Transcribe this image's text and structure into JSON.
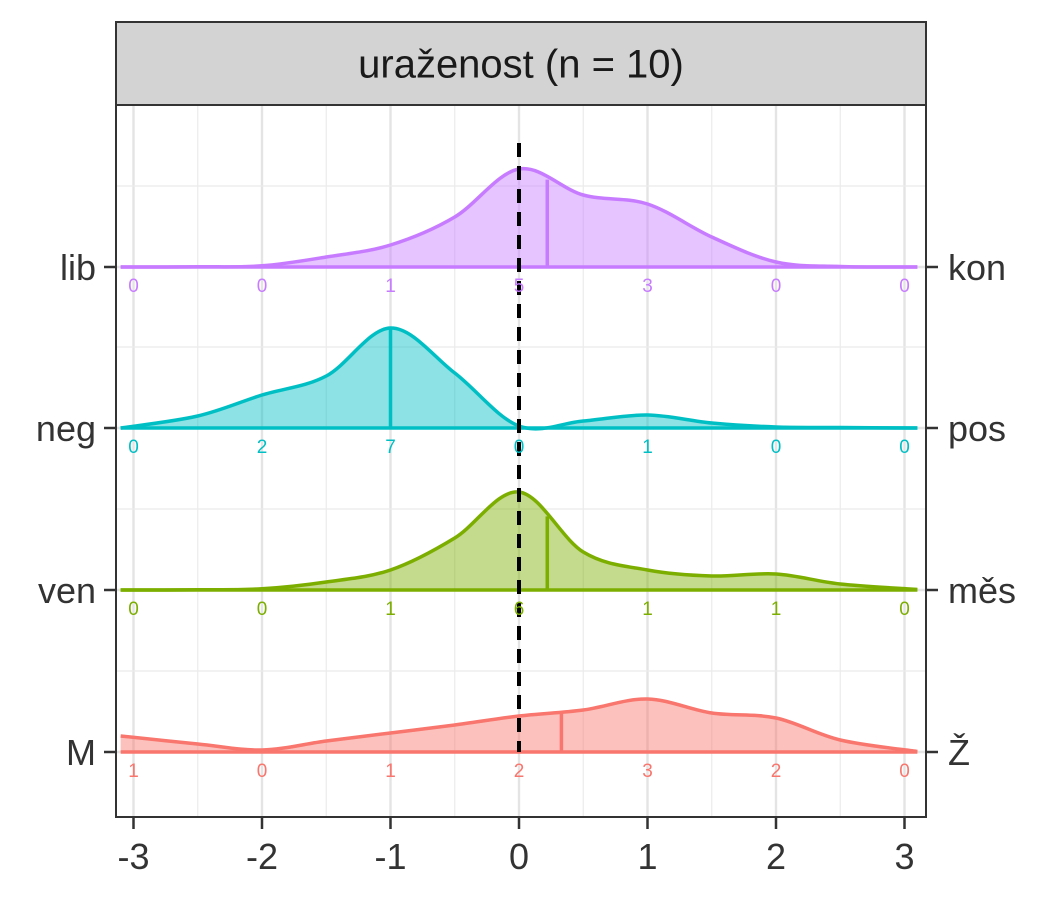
{
  "chart_data": {
    "type": "ridgeline",
    "title": "uraženost (n = 10)",
    "xlim": [
      -3,
      3
    ],
    "x_ticks": [
      -3,
      -2,
      -1,
      0,
      1,
      2,
      3
    ],
    "x_tick_labels": [
      "-3",
      "-2",
      "-1",
      "0",
      "1",
      "2",
      "3"
    ],
    "reference_line_x": 0,
    "grid": true,
    "series": [
      {
        "left_label": "lib",
        "right_label": "kon",
        "color": "#C77CFF",
        "mean": 0.22,
        "counts": [
          0,
          0,
          1,
          5,
          3,
          0,
          0
        ],
        "density": [
          [
            -3.1,
            0
          ],
          [
            -2.5,
            0.002
          ],
          [
            -2,
            0.012
          ],
          [
            -1.5,
            0.1
          ],
          [
            -1,
            0.22
          ],
          [
            -0.5,
            0.5
          ],
          [
            0,
            0.98
          ],
          [
            0.5,
            0.72
          ],
          [
            1,
            0.63
          ],
          [
            1.5,
            0.3
          ],
          [
            2,
            0.05
          ],
          [
            2.5,
            0.005
          ],
          [
            3.1,
            0
          ]
        ]
      },
      {
        "left_label": "neg",
        "right_label": "pos",
        "color": "#00BFC4",
        "mean": -1,
        "counts": [
          0,
          2,
          7,
          0,
          1,
          0,
          0
        ],
        "density": [
          [
            -3.1,
            0
          ],
          [
            -2.5,
            0.12
          ],
          [
            -2,
            0.33
          ],
          [
            -1.5,
            0.52
          ],
          [
            -1,
            1.0
          ],
          [
            -0.5,
            0.55
          ],
          [
            0,
            0.02
          ],
          [
            0.5,
            0.07
          ],
          [
            1,
            0.13
          ],
          [
            1.5,
            0.05
          ],
          [
            2,
            0.01
          ],
          [
            2.5,
            0.005
          ],
          [
            3.1,
            0
          ]
        ]
      },
      {
        "left_label": "ven",
        "right_label": "měs",
        "color": "#7CAE00",
        "mean": 0.22,
        "counts": [
          0,
          0,
          1,
          6,
          1,
          1,
          0
        ],
        "density": [
          [
            -3.1,
            0
          ],
          [
            -2.5,
            0.002
          ],
          [
            -2,
            0.012
          ],
          [
            -1.5,
            0.08
          ],
          [
            -1,
            0.2
          ],
          [
            -0.5,
            0.52
          ],
          [
            0,
            0.98
          ],
          [
            0.5,
            0.38
          ],
          [
            1,
            0.2
          ],
          [
            1.5,
            0.14
          ],
          [
            2,
            0.16
          ],
          [
            2.5,
            0.06
          ],
          [
            3.1,
            0.005
          ]
        ]
      },
      {
        "left_label": "M",
        "right_label": "Ž",
        "color": "#F8766D",
        "mean": 0.33,
        "counts": [
          1,
          0,
          1,
          2,
          3,
          2,
          0
        ],
        "density": [
          [
            -3.1,
            0.16
          ],
          [
            -2.5,
            0.08
          ],
          [
            -2,
            0.02
          ],
          [
            -1.5,
            0.11
          ],
          [
            -1,
            0.19
          ],
          [
            -0.5,
            0.27
          ],
          [
            0,
            0.36
          ],
          [
            0.5,
            0.42
          ],
          [
            1,
            0.53
          ],
          [
            1.5,
            0.39
          ],
          [
            2,
            0.34
          ],
          [
            2.5,
            0.12
          ],
          [
            3.1,
            0.005
          ]
        ]
      }
    ]
  }
}
